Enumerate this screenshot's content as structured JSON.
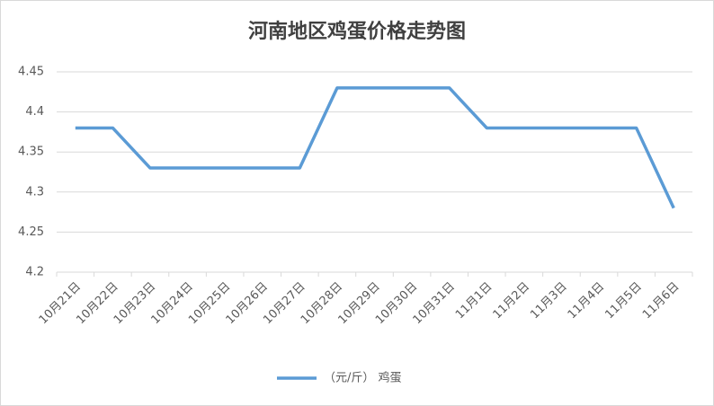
{
  "chart_data": {
    "type": "line",
    "title": "河南地区鸡蛋价格走势图",
    "categories": [
      "10月21日",
      "10月22日",
      "10月23日",
      "10月24日",
      "10月25日",
      "10月26日",
      "10月27日",
      "10月28日",
      "10月29日",
      "10月30日",
      "10月31日",
      "11月1日",
      "11月2日",
      "11月3日",
      "11月4日",
      "11月5日",
      "11月6日"
    ],
    "series": [
      {
        "name": "（元/斤） 鸡蛋",
        "color": "#5b9bd5",
        "values": [
          4.38,
          4.38,
          4.33,
          4.33,
          4.33,
          4.33,
          4.33,
          4.43,
          4.43,
          4.43,
          4.43,
          4.38,
          4.38,
          4.38,
          4.38,
          4.38,
          4.28
        ]
      }
    ],
    "ylim": [
      4.2,
      4.45
    ],
    "yticks": [
      4.2,
      4.25,
      4.3,
      4.35,
      4.4,
      4.45
    ],
    "grid": true,
    "legend": "bottom"
  }
}
